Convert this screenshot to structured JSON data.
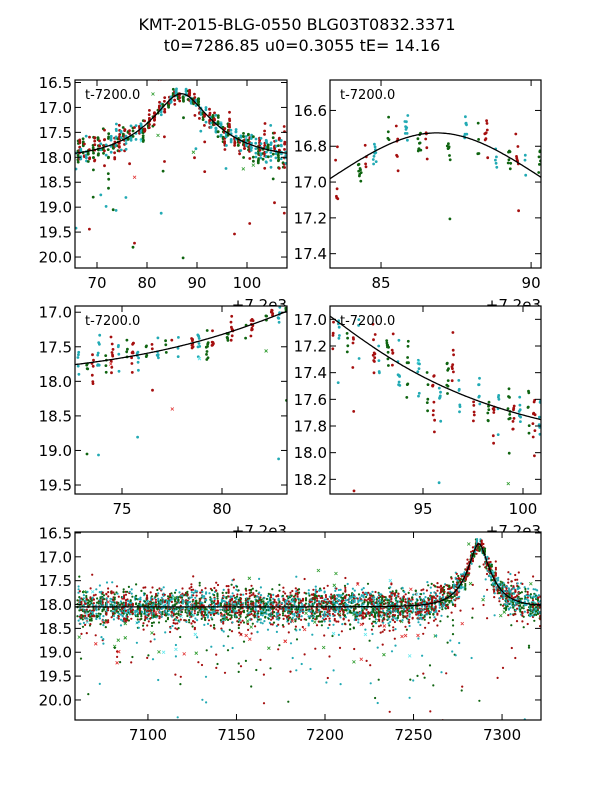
{
  "title_line1": "KMT-2015-BLG-0550 BLG03T0832.3371",
  "title_line2": "t0=7286.85 u0=0.3055 tE=  14.16",
  "chart_data": [
    {
      "type": "scatter",
      "panel": "full-peak",
      "annotation": "t-7200.0",
      "offset_label": "+7.2e3",
      "xlim": [
        65.6,
        108
      ],
      "ylim": [
        20.22,
        16.45
      ],
      "xticks": [
        "70",
        "80",
        "90",
        "100"
      ],
      "xtick_values": [
        70,
        80,
        90,
        100
      ],
      "yticks": [
        "16.5",
        "17.0",
        "17.5",
        "18.0",
        "18.5",
        "19.0",
        "19.5",
        "20.0"
      ],
      "ytick_values": [
        16.5,
        17,
        17.5,
        18,
        18.5,
        19,
        19.5,
        20
      ]
    },
    {
      "type": "scatter",
      "panel": "peak-zoom",
      "annotation": "t-7200.0",
      "offset_label": "+7.2e3",
      "xlim": [
        83.3,
        90.33
      ],
      "ylim": [
        17.48,
        16.43
      ],
      "xticks": [
        "85",
        "90"
      ],
      "xtick_values": [
        85,
        90
      ],
      "yticks": [
        "16.6",
        "16.8",
        "17.0",
        "17.2",
        "17.4"
      ],
      "ytick_values": [
        16.6,
        16.8,
        17.0,
        17.2,
        17.4
      ]
    },
    {
      "type": "scatter",
      "panel": "rising",
      "annotation": "t-7200.0",
      "offset_label": "+7.2e3",
      "xlim": [
        72.65,
        83.25
      ],
      "ylim": [
        19.63,
        16.91
      ],
      "xticks": [
        "75",
        "80"
      ],
      "xtick_values": [
        75,
        80
      ],
      "yticks": [
        "17.0",
        "17.5",
        "18.0",
        "18.5",
        "19.0",
        "19.5"
      ],
      "ytick_values": [
        17,
        17.5,
        18,
        18.5,
        19,
        19.5
      ]
    },
    {
      "type": "scatter",
      "panel": "falling",
      "annotation": "t-7200.0",
      "offset_label": "+7.2e3",
      "xlim": [
        90.35,
        100.9
      ],
      "ylim": [
        18.31,
        16.9
      ],
      "xticks": [
        "95",
        "100"
      ],
      "xtick_values": [
        95,
        100
      ],
      "yticks": [
        "17.0",
        "17.2",
        "17.4",
        "17.6",
        "17.8",
        "18.0",
        "18.2"
      ],
      "ytick_values": [
        17,
        17.2,
        17.4,
        17.6,
        17.8,
        18.0,
        18.2
      ]
    },
    {
      "type": "scatter",
      "panel": "full-season",
      "annotation": "",
      "offset_label": "",
      "xlim": [
        7058.8,
        7322
      ],
      "ylim": [
        20.42,
        16.48
      ],
      "xticks": [
        "7100",
        "7150",
        "7200",
        "7250",
        "7300"
      ],
      "xtick_values": [
        7100,
        7150,
        7200,
        7250,
        7300
      ],
      "yticks": [
        "16.5",
        "17.0",
        "17.5",
        "18.0",
        "18.5",
        "19.0",
        "19.5",
        "20.0"
      ],
      "ytick_values": [
        16.5,
        17,
        17.5,
        18,
        18.5,
        19,
        19.5,
        20
      ]
    }
  ],
  "model": {
    "t0": 7286.85,
    "u0": 0.3055,
    "tE": 14.16,
    "baseline_mag": 18.05,
    "color": "#000000"
  },
  "series": [
    {
      "name": "site-green",
      "color": "#0f6410",
      "reject_color": "#2a9a2a"
    },
    {
      "name": "site-red",
      "color": "#a50f0f",
      "reject_color": "#e03030"
    },
    {
      "name": "site-cyan",
      "color": "#22aab4",
      "reject_color": "#5ee8ee"
    }
  ]
}
